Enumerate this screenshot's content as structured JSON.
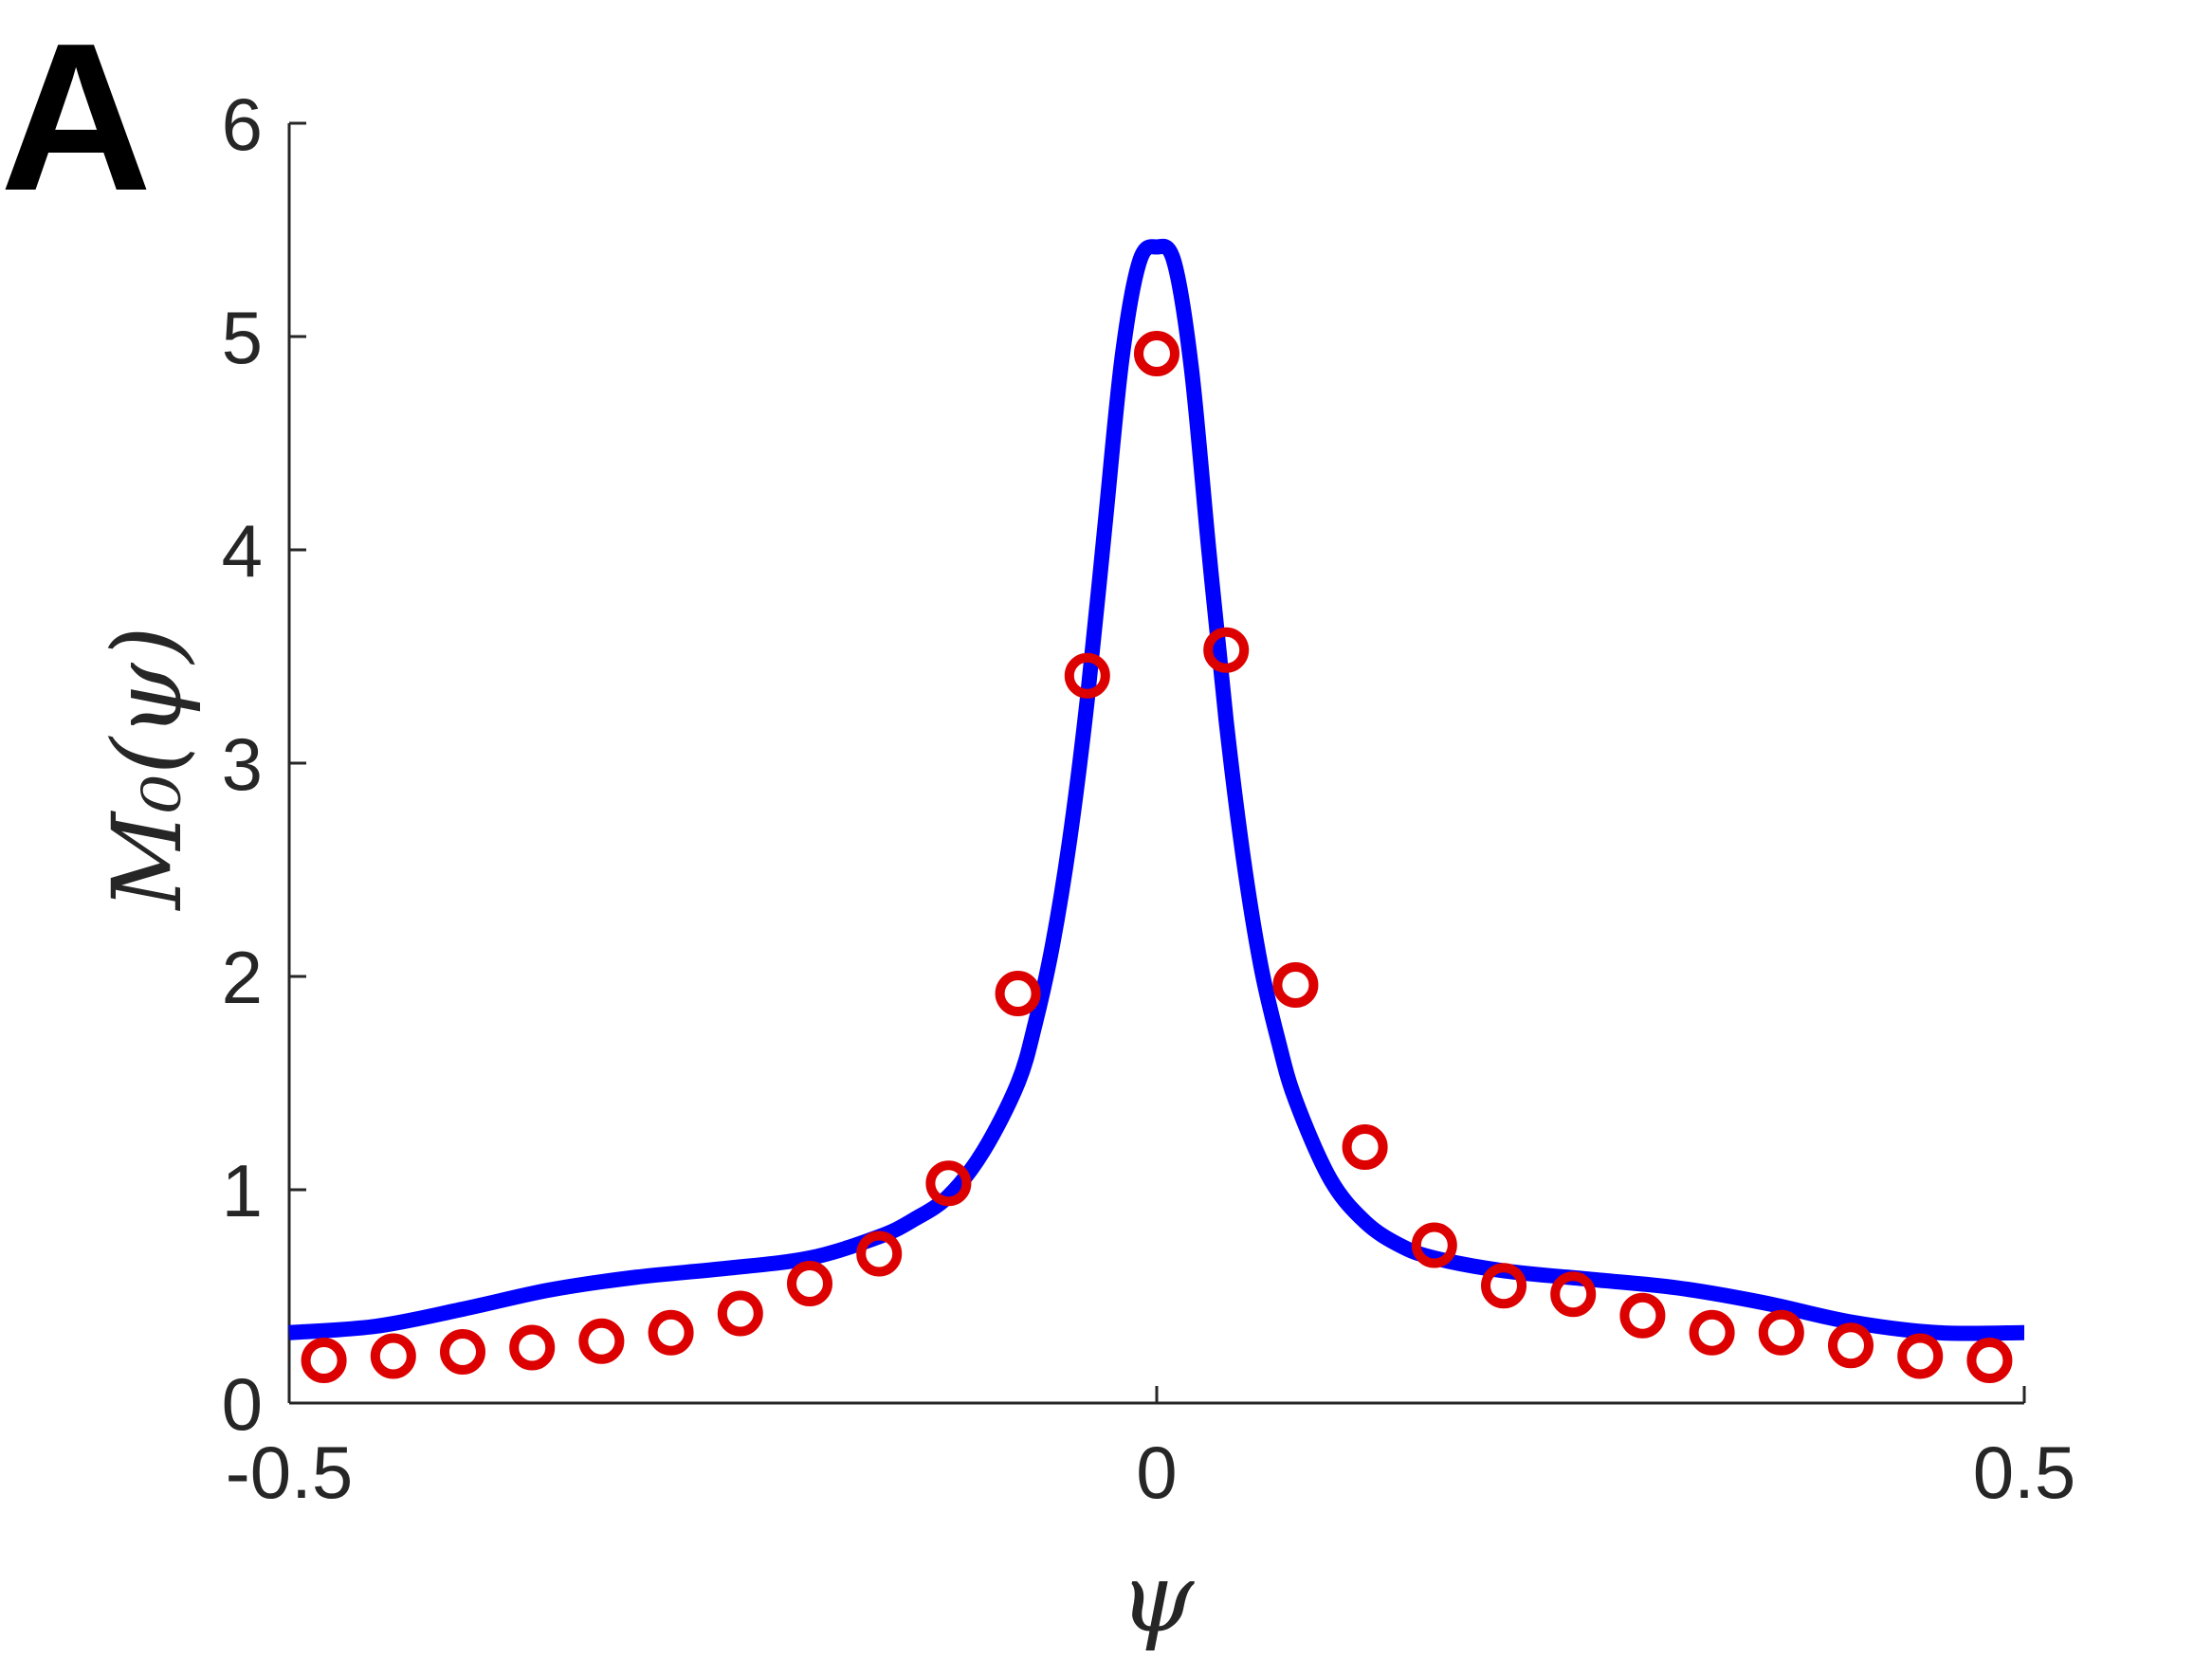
{
  "panel_label": "A",
  "chart_data": {
    "type": "line",
    "xlabel": "ψ",
    "ylabel": "M₀(ψ)",
    "xlim": [
      -0.5,
      0.5
    ],
    "ylim": [
      0,
      6
    ],
    "xticks": [
      -0.5,
      0,
      0.5
    ],
    "xtick_labels": [
      "-0.5",
      "0",
      "0.5"
    ],
    "yticks": [
      0,
      1,
      2,
      3,
      4,
      5,
      6
    ],
    "ytick_labels": [
      "0",
      "1",
      "2",
      "3",
      "4",
      "5",
      "6"
    ],
    "grid": false,
    "box": false,
    "series": [
      {
        "kind": "line",
        "color": "#0000ff",
        "x": [
          -0.5,
          -0.45,
          -0.4,
          -0.35,
          -0.3,
          -0.25,
          -0.2,
          -0.16,
          -0.14,
          -0.12,
          -0.1,
          -0.08,
          -0.07,
          -0.06,
          -0.05,
          -0.04,
          -0.03,
          -0.02,
          -0.01,
          0,
          0.01,
          0.02,
          0.03,
          0.04,
          0.05,
          0.06,
          0.07,
          0.08,
          0.1,
          0.12,
          0.14,
          0.16,
          0.2,
          0.25,
          0.3,
          0.35,
          0.4,
          0.45,
          0.5
        ],
        "y": [
          0.33,
          0.36,
          0.44,
          0.53,
          0.59,
          0.63,
          0.68,
          0.78,
          0.86,
          0.97,
          1.18,
          1.5,
          1.78,
          2.15,
          2.65,
          3.3,
          4.1,
          4.9,
          5.35,
          5.42,
          5.35,
          4.85,
          4.0,
          3.2,
          2.55,
          2.05,
          1.7,
          1.42,
          1.05,
          0.85,
          0.74,
          0.68,
          0.62,
          0.58,
          0.54,
          0.47,
          0.38,
          0.33,
          0.33
        ]
      },
      {
        "kind": "scatter",
        "color": "#dd0000",
        "marker": "circle-open",
        "x": [
          -0.48,
          -0.44,
          -0.4,
          -0.36,
          -0.32,
          -0.28,
          -0.24,
          -0.2,
          -0.16,
          -0.12,
          -0.08,
          -0.04,
          0,
          0.04,
          0.08,
          0.12,
          0.16,
          0.2,
          0.24,
          0.28,
          0.32,
          0.36,
          0.4,
          0.44,
          0.48
        ],
        "y": [
          0.2,
          0.22,
          0.24,
          0.26,
          0.29,
          0.33,
          0.42,
          0.56,
          0.7,
          1.03,
          1.92,
          3.41,
          4.92,
          3.53,
          1.96,
          1.2,
          0.74,
          0.55,
          0.51,
          0.41,
          0.33,
          0.33,
          0.27,
          0.22,
          0.2
        ]
      }
    ]
  }
}
